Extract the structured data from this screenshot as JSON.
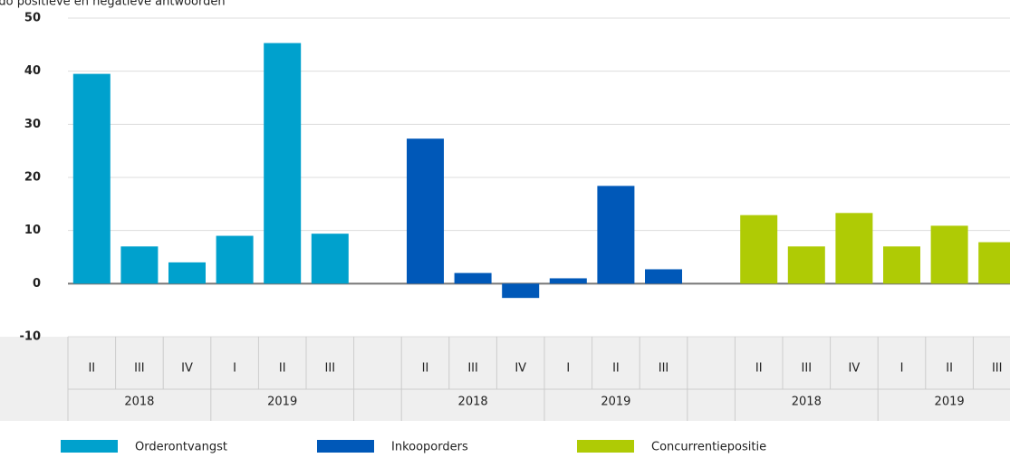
{
  "chart_data": {
    "type": "bar",
    "y_label": "saldo positieve en negatieve antwoorden",
    "categories": [
      "II",
      "III",
      "IV",
      "I",
      "II",
      "III"
    ],
    "years": [
      "2018",
      "2019"
    ],
    "series": [
      {
        "name": "Orderontvangst",
        "color": "#00a1cd",
        "values": [
          39.5,
          7,
          4,
          9,
          45.3,
          9.4
        ]
      },
      {
        "name": "Inkooporders",
        "color": "#0058b8",
        "values": [
          27.3,
          2,
          -2.7,
          1,
          18.4,
          2.7
        ]
      },
      {
        "name": "Concurrentiepositie",
        "color": "#afcb05",
        "values": [
          12.9,
          7,
          13.3,
          7,
          10.9,
          7.8
        ]
      }
    ],
    "ylim": [
      -10,
      50
    ],
    "yticks": [
      -10,
      0,
      10,
      20,
      30,
      40,
      50
    ],
    "grid": true,
    "legend": "bottom"
  }
}
